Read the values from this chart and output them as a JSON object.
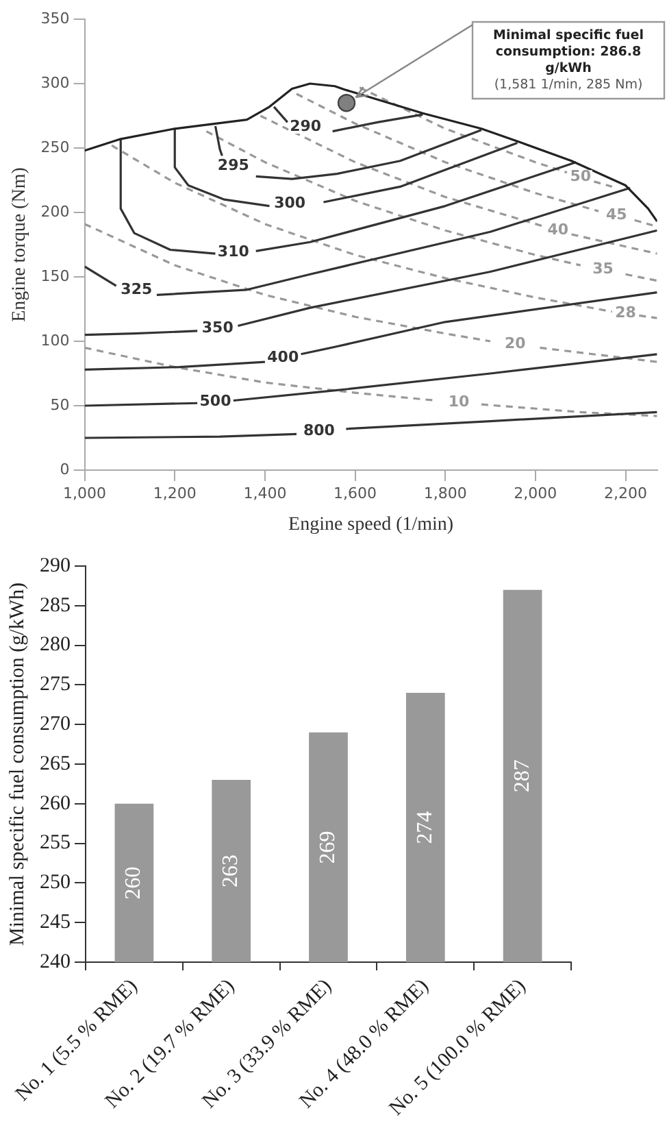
{
  "chart_data": [
    {
      "type": "line",
      "xlabel": "Engine speed (1/min)",
      "ylabel": "Engine torque (Nm)",
      "xlim": [
        1000,
        2270
      ],
      "ylim": [
        0,
        350
      ],
      "xticks": [
        {
          "value": 1000,
          "label": "1,000"
        },
        {
          "value": 1200,
          "label": "1,200"
        },
        {
          "value": 1400,
          "label": "1,400"
        },
        {
          "value": 1600,
          "label": "1,600"
        },
        {
          "value": 1800,
          "label": "1,800"
        },
        {
          "value": 2000,
          "label": "2,000"
        },
        {
          "value": 2200,
          "label": "2,200"
        }
      ],
      "yticks": [
        0,
        50,
        100,
        150,
        200,
        250,
        300,
        350
      ],
      "grid": false,
      "legend": false,
      "marker": "none",
      "series": [
        {
          "color": "#222222",
          "x": [
            1000,
            1080,
            1200,
            1360,
            1410,
            1460,
            1500,
            1555,
            1580,
            1750,
            1880,
            1970,
            2080,
            2200,
            2250,
            2270
          ],
          "values": [
            248,
            257,
            265,
            272,
            282,
            296,
            300,
            298,
            295,
            277,
            265,
            254,
            240,
            221,
            203,
            193
          ]
        },
        {
          "name": "290",
          "color": "#333333",
          "x": [
            1420,
            1450,
            1490,
            1550,
            1650,
            1750
          ],
          "values": [
            282,
            270,
            null,
            263,
            270,
            276
          ]
        },
        {
          "name": "295",
          "color": "#333333",
          "x": [
            1290,
            1300,
            1305,
            1330,
            1380,
            1460,
            1560,
            1700,
            1880
          ],
          "values": [
            267,
            249,
            244,
            null,
            228,
            226,
            230,
            240,
            264
          ]
        },
        {
          "name": "300",
          "color": "#333333",
          "x": [
            1200,
            1200,
            1230,
            1310,
            1410,
            1455,
            1530,
            1700,
            1960
          ],
          "values": [
            265,
            235,
            221,
            210,
            205,
            null,
            208,
            220,
            254
          ]
        },
        {
          "name": "310",
          "color": "#333333",
          "x": [
            1080,
            1080,
            1110,
            1190,
            1290,
            1330,
            1380,
            1500,
            1800,
            2090
          ],
          "values": [
            256,
            203,
            184,
            171,
            168,
            null,
            170,
            177,
            205,
            239
          ]
        },
        {
          "name": "325",
          "color": "#333333",
          "x": [
            1000,
            1070,
            1115,
            1160,
            1360,
            1500,
            1900,
            2210
          ],
          "values": [
            158,
            143,
            null,
            136,
            140,
            152,
            185,
            219
          ]
        },
        {
          "name": "350",
          "color": "#333333",
          "x": [
            1000,
            1110,
            1250,
            1295,
            1340,
            1500,
            1900,
            2270
          ],
          "values": [
            105,
            106,
            108,
            null,
            112,
            126,
            154,
            186
          ]
        },
        {
          "name": "400",
          "color": "#333333",
          "x": [
            1000,
            1210,
            1400,
            1440,
            1480,
            1560,
            1800,
            2270
          ],
          "values": [
            78,
            80,
            84,
            null,
            90,
            96,
            115,
            138
          ]
        },
        {
          "name": "500",
          "color": "#333333",
          "x": [
            1000,
            1250,
            1290,
            1330,
            1560,
            1900,
            2270
          ],
          "values": [
            50,
            52,
            null,
            54,
            62,
            75,
            90
          ]
        },
        {
          "name": "800",
          "color": "#333333",
          "x": [
            1000,
            1300,
            1470,
            1520,
            1580,
            1900,
            2270
          ],
          "values": [
            25,
            26,
            28,
            null,
            32,
            38,
            45
          ]
        },
        {
          "name": "50",
          "color": "#999999",
          "line_style": "dashed",
          "x": [
            1610,
            1800,
            2000,
            2070,
            2100,
            2130,
            2170
          ],
          "values": [
            297,
            265,
            239,
            231,
            null,
            224,
            220
          ]
        },
        {
          "name": "45",
          "color": "#999999",
          "line_style": "dashed",
          "x": [
            1470,
            1600,
            1800,
            2000,
            2140,
            2180,
            2220,
            2260
          ],
          "values": [
            292,
            269,
            239,
            215,
            201,
            null,
            194,
            190
          ]
        },
        {
          "name": "40",
          "color": "#999999",
          "line_style": "dashed",
          "x": [
            1390,
            1600,
            1800,
            2020,
            2050,
            2080,
            2270
          ],
          "values": [
            275,
            239,
            212,
            189,
            null,
            183,
            168
          ]
        },
        {
          "name": "35",
          "color": "#999999",
          "line_style": "dashed",
          "x": [
            1270,
            1400,
            1600,
            1800,
            2000,
            2100,
            2150,
            2200,
            2270
          ],
          "values": [
            263,
            239,
            209,
            186,
            167,
            159,
            null,
            152,
            147
          ]
        },
        {
          "name": "28",
          "color": "#999999",
          "line_style": "dashed",
          "x": [
            1060,
            1200,
            1400,
            1600,
            1800,
            2000,
            2170,
            2200,
            2230,
            2270
          ],
          "values": [
            252,
            223,
            191,
            167,
            149,
            134,
            123,
            null,
            120,
            118
          ]
        },
        {
          "name": "20",
          "color": "#999999",
          "line_style": "dashed",
          "x": [
            1000,
            1200,
            1400,
            1600,
            1800,
            1900,
            1955,
            2010,
            2270
          ],
          "values": [
            191,
            159,
            136,
            119,
            106,
            100,
            null,
            95,
            84
          ]
        },
        {
          "name": "10",
          "color": "#999999",
          "line_style": "dashed",
          "x": [
            1000,
            1200,
            1400,
            1600,
            1780,
            1830,
            1880,
            2100,
            2270
          ],
          "values": [
            95,
            80,
            68,
            60,
            54,
            null,
            51,
            45,
            42
          ]
        },
        {
          "type": "scatter",
          "marker": "circle",
          "color": "#808080",
          "x": [
            1581
          ],
          "values": [
            285
          ]
        }
      ],
      "annotations": [
        "Minimal specific fuel consumption: 286.8 g/kWh",
        "(1,581 1/min, 285 Nm)"
      ]
    },
    {
      "type": "bar",
      "ylabel": "Minimal specific fuel consumption (g/kWh)",
      "categories": [
        "No. 1 (5.5 % RME)",
        "No. 2 (19.7 % RME)",
        "No. 3 (33.9 % RME)",
        "No. 4 (48.0 % RME)",
        "No. 5 (100.0 % RME)"
      ],
      "values": [
        260,
        263,
        269,
        274,
        287
      ],
      "color": "#999999",
      "data_labels": true,
      "ylim": [
        240,
        290
      ],
      "yticks": [
        240,
        245,
        250,
        255,
        260,
        265,
        270,
        275,
        280,
        285,
        290
      ],
      "grid": false,
      "legend": false
    }
  ]
}
